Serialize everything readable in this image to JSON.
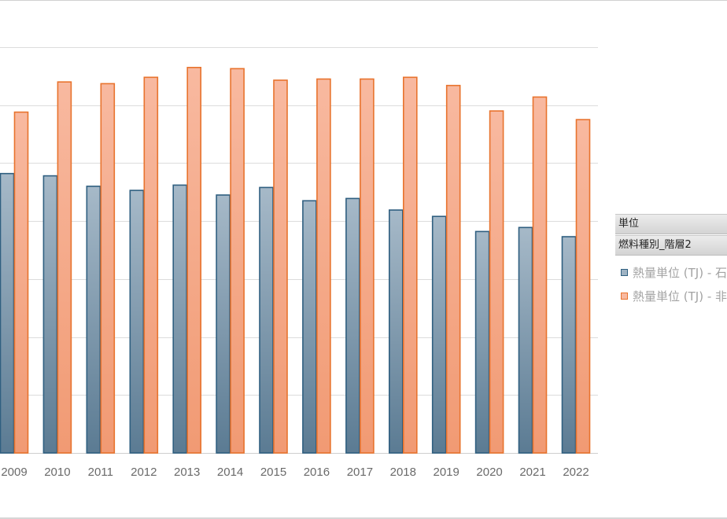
{
  "chart_data": {
    "type": "bar",
    "categories": [
      "2009",
      "2010",
      "2011",
      "2012",
      "2013",
      "2014",
      "2015",
      "2016",
      "2017",
      "2018",
      "2019",
      "2020",
      "2021",
      "2022"
    ],
    "series": [
      {
        "name": "熱量単位 (TJ) - 石",
        "color": "#5e7d96",
        "values": [
          4.82,
          4.78,
          4.6,
          4.53,
          4.62,
          4.45,
          4.58,
          4.35,
          4.39,
          4.19,
          4.08,
          3.82,
          3.89,
          3.73
        ]
      },
      {
        "name": "熱量単位 (TJ) - 非",
        "color": "#ed7d31",
        "values": [
          5.88,
          6.4,
          6.37,
          6.48,
          6.65,
          6.63,
          6.43,
          6.45,
          6.45,
          6.48,
          6.34,
          5.9,
          6.14,
          5.75
        ]
      }
    ],
    "ylim": [
      0,
      7
    ],
    "grid": true,
    "legend_position": "right"
  },
  "legend": {
    "header1": "単位",
    "header2": "燃料種別_階層2"
  }
}
